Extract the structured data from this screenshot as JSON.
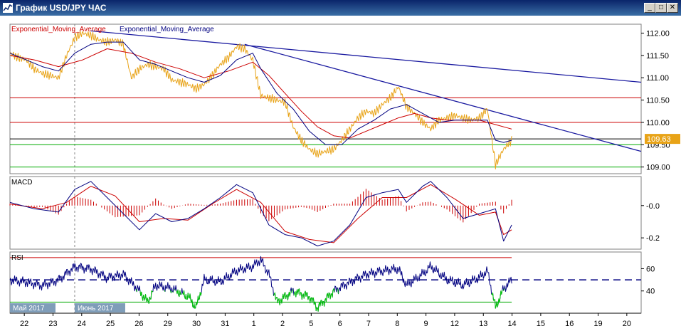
{
  "window": {
    "title": "График USD/JPY ЧАС"
  },
  "chart_data": {
    "type": "line",
    "symbol": "USD/JPY",
    "timeframe": "ЧАС",
    "current_price": "109.63",
    "price_panel": {
      "labels": [
        "Exponential_Moving_Average",
        "Exponential_Moving_Average"
      ],
      "yticks": [
        "112.00",
        "111.50",
        "111.00",
        "110.50",
        "110.00",
        "109.50",
        "109.00"
      ],
      "ylim": [
        108.85,
        112.2
      ],
      "price": [
        [
          0,
          111.55
        ],
        [
          1,
          111.45
        ],
        [
          2,
          111.4
        ],
        [
          3,
          111.2
        ],
        [
          4,
          111.1
        ],
        [
          5,
          111.05
        ],
        [
          6,
          111.0
        ],
        [
          7,
          111.5
        ],
        [
          8,
          111.9
        ],
        [
          9,
          112.0
        ],
        [
          10,
          111.95
        ],
        [
          11,
          111.85
        ],
        [
          12,
          111.8
        ],
        [
          13,
          111.85
        ],
        [
          14,
          111.75
        ],
        [
          15,
          111.0
        ],
        [
          16,
          111.2
        ],
        [
          17,
          111.3
        ],
        [
          18,
          111.25
        ],
        [
          19,
          111.2
        ],
        [
          20,
          110.95
        ],
        [
          21,
          110.9
        ],
        [
          22,
          110.85
        ],
        [
          23,
          110.75
        ],
        [
          24,
          110.85
        ],
        [
          25,
          111.05
        ],
        [
          26,
          111.3
        ],
        [
          27,
          111.45
        ],
        [
          28,
          111.7
        ],
        [
          29,
          111.65
        ],
        [
          30,
          111.4
        ],
        [
          31,
          110.6
        ],
        [
          32,
          110.55
        ],
        [
          33,
          110.5
        ],
        [
          34,
          110.45
        ],
        [
          35,
          109.9
        ],
        [
          36,
          109.6
        ],
        [
          37,
          109.4
        ],
        [
          38,
          109.3
        ],
        [
          39,
          109.35
        ],
        [
          40,
          109.4
        ],
        [
          41,
          109.6
        ],
        [
          42,
          109.85
        ],
        [
          43,
          110.1
        ],
        [
          44,
          110.25
        ],
        [
          45,
          110.2
        ],
        [
          46,
          110.4
        ],
        [
          47,
          110.55
        ],
        [
          48,
          110.8
        ],
        [
          49,
          110.35
        ],
        [
          50,
          110.2
        ],
        [
          51,
          110.0
        ],
        [
          52,
          109.85
        ],
        [
          53,
          110.05
        ],
        [
          54,
          110.1
        ],
        [
          55,
          110.15
        ],
        [
          56,
          110.1
        ],
        [
          57,
          110.05
        ],
        [
          58,
          110.1
        ],
        [
          59,
          110.3
        ],
        [
          60,
          109.05
        ],
        [
          61,
          109.4
        ],
        [
          62,
          109.6
        ]
      ],
      "ema_fast": [
        [
          0,
          111.55
        ],
        [
          2,
          111.4
        ],
        [
          4,
          111.25
        ],
        [
          6,
          111.15
        ],
        [
          8,
          111.55
        ],
        [
          10,
          111.75
        ],
        [
          12,
          111.8
        ],
        [
          14,
          111.8
        ],
        [
          16,
          111.4
        ],
        [
          18,
          111.3
        ],
        [
          20,
          111.15
        ],
        [
          22,
          111.0
        ],
        [
          24,
          110.9
        ],
        [
          26,
          111.05
        ],
        [
          28,
          111.4
        ],
        [
          30,
          111.55
        ],
        [
          31,
          111.2
        ],
        [
          33,
          110.65
        ],
        [
          35,
          110.3
        ],
        [
          37,
          109.8
        ],
        [
          39,
          109.5
        ],
        [
          41,
          109.5
        ],
        [
          43,
          109.85
        ],
        [
          45,
          110.05
        ],
        [
          47,
          110.3
        ],
        [
          49,
          110.4
        ],
        [
          51,
          110.2
        ],
        [
          53,
          110.0
        ],
        [
          55,
          110.05
        ],
        [
          57,
          110.05
        ],
        [
          59,
          110.05
        ],
        [
          60,
          109.6
        ],
        [
          61,
          109.55
        ],
        [
          62,
          109.6
        ]
      ],
      "ema_slow": [
        [
          0,
          111.5
        ],
        [
          3,
          111.4
        ],
        [
          6,
          111.25
        ],
        [
          9,
          111.4
        ],
        [
          12,
          111.65
        ],
        [
          15,
          111.55
        ],
        [
          18,
          111.35
        ],
        [
          21,
          111.2
        ],
        [
          24,
          111.0
        ],
        [
          27,
          111.15
        ],
        [
          30,
          111.35
        ],
        [
          32,
          111.05
        ],
        [
          34,
          110.65
        ],
        [
          36,
          110.25
        ],
        [
          38,
          109.9
        ],
        [
          40,
          109.7
        ],
        [
          42,
          109.65
        ],
        [
          44,
          109.8
        ],
        [
          46,
          109.95
        ],
        [
          48,
          110.1
        ],
        [
          50,
          110.2
        ],
        [
          52,
          110.1
        ],
        [
          54,
          110.05
        ],
        [
          56,
          110.05
        ],
        [
          58,
          110.05
        ],
        [
          60,
          109.95
        ],
        [
          62,
          109.85
        ]
      ],
      "trendlines": [
        {
          "from": [
            10,
            112.05
          ],
          "to": [
            78,
            110.9
          ]
        },
        {
          "from": [
            29,
            111.75
          ],
          "to": [
            78,
            109.35
          ]
        }
      ],
      "hlines": [
        {
          "y": 110.55,
          "color": "#cc0000"
        },
        {
          "y": 110.0,
          "color": "#cc0000"
        },
        {
          "y": 109.63,
          "color": "#000000"
        },
        {
          "y": 109.5,
          "color": "#00aa00"
        },
        {
          "y": 109.0,
          "color": "#00aa00"
        }
      ]
    },
    "macd_panel": {
      "label": "MACD",
      "yticks": [
        "-0.0",
        "-0.2"
      ],
      "ylim": [
        -0.27,
        0.18
      ],
      "macd": [
        [
          0,
          0.02
        ],
        [
          3,
          -0.02
        ],
        [
          6,
          -0.04
        ],
        [
          8,
          0.1
        ],
        [
          10,
          0.15
        ],
        [
          12,
          0.05
        ],
        [
          14,
          -0.05
        ],
        [
          16,
          -0.15
        ],
        [
          18,
          -0.05
        ],
        [
          20,
          -0.1
        ],
        [
          22,
          -0.08
        ],
        [
          24,
          -0.02
        ],
        [
          26,
          0.05
        ],
        [
          28,
          0.13
        ],
        [
          30,
          0.08
        ],
        [
          32,
          -0.12
        ],
        [
          34,
          -0.18
        ],
        [
          36,
          -0.2
        ],
        [
          38,
          -0.25
        ],
        [
          40,
          -0.22
        ],
        [
          42,
          -0.12
        ],
        [
          44,
          0.05
        ],
        [
          46,
          0.08
        ],
        [
          48,
          0.1
        ],
        [
          49,
          0.02
        ],
        [
          51,
          0.12
        ],
        [
          52,
          0.15
        ],
        [
          54,
          0.05
        ],
        [
          56,
          -0.08
        ],
        [
          58,
          -0.05
        ],
        [
          60,
          -0.02
        ],
        [
          61,
          -0.22
        ],
        [
          62,
          -0.12
        ]
      ],
      "signal": [
        [
          0,
          0.01
        ],
        [
          4,
          -0.02
        ],
        [
          7,
          0.02
        ],
        [
          10,
          0.12
        ],
        [
          13,
          0.06
        ],
        [
          16,
          -0.1
        ],
        [
          19,
          -0.08
        ],
        [
          22,
          -0.09
        ],
        [
          25,
          0.01
        ],
        [
          28,
          0.1
        ],
        [
          31,
          0.02
        ],
        [
          34,
          -0.16
        ],
        [
          37,
          -0.21
        ],
        [
          40,
          -0.23
        ],
        [
          43,
          -0.08
        ],
        [
          46,
          0.05
        ],
        [
          49,
          0.05
        ],
        [
          52,
          0.13
        ],
        [
          55,
          0.04
        ],
        [
          58,
          -0.06
        ],
        [
          60,
          -0.04
        ],
        [
          61,
          -0.18
        ],
        [
          62,
          -0.15
        ]
      ]
    },
    "rsi_panel": {
      "label": "RSI",
      "yticks": [
        "60",
        "40"
      ],
      "ylim": [
        20,
        75
      ],
      "levels": {
        "upper": 70,
        "mid": 50,
        "lower": 30
      },
      "rsi": [
        [
          0,
          50
        ],
        [
          2,
          48
        ],
        [
          4,
          45
        ],
        [
          6,
          50
        ],
        [
          8,
          62
        ],
        [
          10,
          60
        ],
        [
          12,
          52
        ],
        [
          14,
          55
        ],
        [
          16,
          40
        ],
        [
          17,
          30
        ],
        [
          18,
          45
        ],
        [
          20,
          42
        ],
        [
          22,
          35
        ],
        [
          23,
          25
        ],
        [
          24,
          50
        ],
        [
          26,
          48
        ],
        [
          28,
          58
        ],
        [
          30,
          62
        ],
        [
          31,
          68
        ],
        [
          32,
          55
        ],
        [
          33,
          30
        ],
        [
          35,
          40
        ],
        [
          37,
          35
        ],
        [
          38,
          25
        ],
        [
          40,
          40
        ],
        [
          42,
          48
        ],
        [
          44,
          55
        ],
        [
          46,
          58
        ],
        [
          48,
          60
        ],
        [
          49,
          45
        ],
        [
          51,
          55
        ],
        [
          52,
          62
        ],
        [
          54,
          50
        ],
        [
          56,
          45
        ],
        [
          58,
          52
        ],
        [
          59,
          58
        ],
        [
          60,
          25
        ],
        [
          61,
          42
        ],
        [
          62,
          50
        ]
      ]
    },
    "x_axis": {
      "ticks": [
        "22",
        "23",
        "24",
        "25",
        "26",
        "29",
        "30",
        "31",
        "1",
        "2",
        "5",
        "6",
        "7",
        "8",
        "9",
        "12",
        "13",
        "14",
        "15",
        "16",
        "19",
        "20"
      ],
      "month_labels": [
        {
          "text": "Май 2017",
          "at": 0
        },
        {
          "text": "Июнь 2017",
          "at": 8
        }
      ],
      "separator_at": 8
    }
  }
}
